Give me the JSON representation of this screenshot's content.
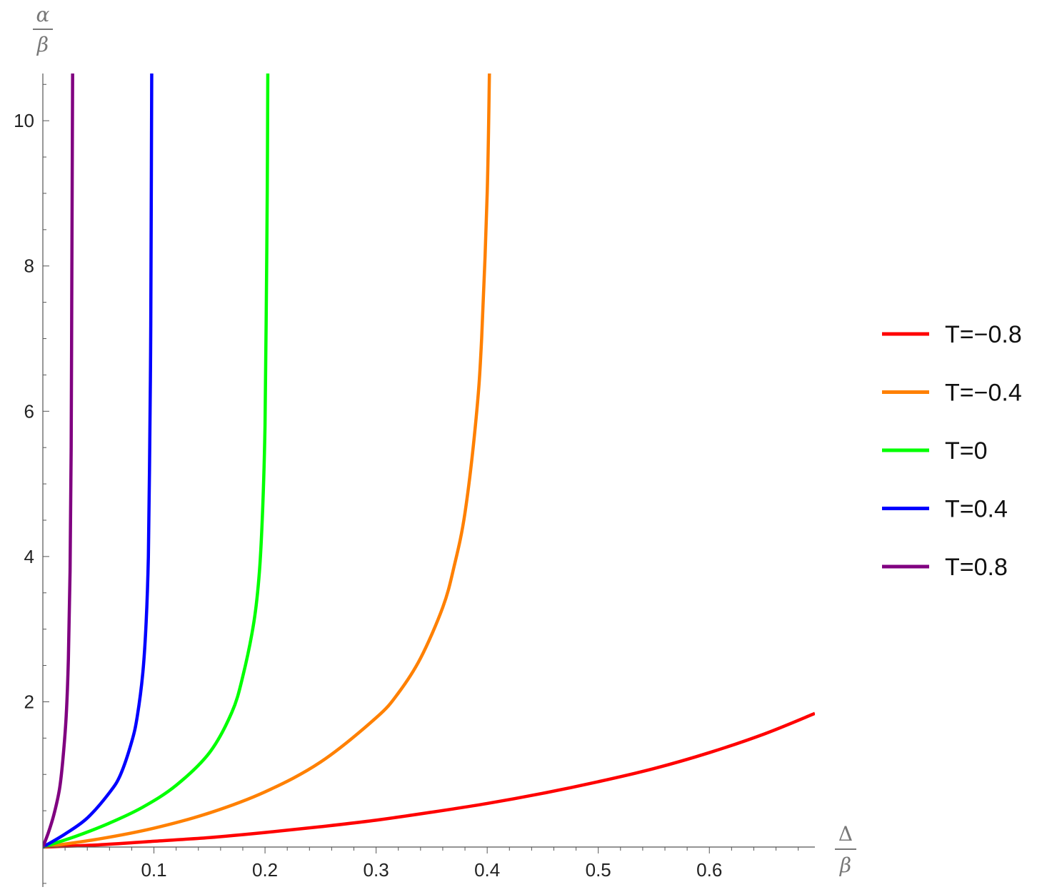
{
  "chart_data": {
    "type": "line",
    "title": "",
    "xlabel": {
      "numerator": "Δ",
      "denominator": "β"
    },
    "ylabel": {
      "numerator": "α",
      "denominator": "β"
    },
    "xlim": [
      0,
      0.695
    ],
    "ylim": [
      -0.55,
      10.65
    ],
    "x_ticks": [
      0.1,
      0.2,
      0.3,
      0.4,
      0.5,
      0.6
    ],
    "x_tick_labels": [
      "0.1",
      "0.2",
      "0.3",
      "0.4",
      "0.5",
      "0.6"
    ],
    "y_ticks": [
      2,
      4,
      6,
      8,
      10
    ],
    "y_tick_labels": [
      "2",
      "4",
      "6",
      "8",
      "10"
    ],
    "grid": false,
    "legend_position": "right",
    "series": [
      {
        "name": "T=−0.8",
        "color": "#ff0000",
        "points": [
          [
            0,
            0
          ],
          [
            0.05,
            0.03
          ],
          [
            0.1,
            0.08
          ],
          [
            0.15,
            0.13
          ],
          [
            0.2,
            0.2
          ],
          [
            0.25,
            0.28
          ],
          [
            0.3,
            0.37
          ],
          [
            0.35,
            0.48
          ],
          [
            0.4,
            0.6
          ],
          [
            0.45,
            0.74
          ],
          [
            0.5,
            0.9
          ],
          [
            0.55,
            1.08
          ],
          [
            0.6,
            1.3
          ],
          [
            0.65,
            1.56
          ],
          [
            0.695,
            1.84
          ]
        ]
      },
      {
        "name": "T=−0.4",
        "color": "#ff8000",
        "points": [
          [
            0,
            0
          ],
          [
            0.05,
            0.11
          ],
          [
            0.1,
            0.26
          ],
          [
            0.15,
            0.47
          ],
          [
            0.2,
            0.76
          ],
          [
            0.25,
            1.17
          ],
          [
            0.3,
            1.78
          ],
          [
            0.32,
            2.12
          ],
          [
            0.34,
            2.6
          ],
          [
            0.36,
            3.3
          ],
          [
            0.37,
            3.85
          ],
          [
            0.38,
            4.6
          ],
          [
            0.39,
            5.9
          ],
          [
            0.395,
            7.0
          ],
          [
            0.4,
            9.0
          ],
          [
            0.402,
            10.65
          ]
        ]
      },
      {
        "name": "T=0",
        "color": "#00ff00",
        "points": [
          [
            0,
            0
          ],
          [
            0.03,
            0.15
          ],
          [
            0.06,
            0.33
          ],
          [
            0.09,
            0.55
          ],
          [
            0.12,
            0.85
          ],
          [
            0.15,
            1.3
          ],
          [
            0.17,
            1.85
          ],
          [
            0.18,
            2.35
          ],
          [
            0.19,
            3.1
          ],
          [
            0.195,
            3.8
          ],
          [
            0.198,
            4.7
          ],
          [
            0.2,
            5.8
          ],
          [
            0.201,
            7.2
          ],
          [
            0.202,
            9.0
          ],
          [
            0.2025,
            10.65
          ]
        ]
      },
      {
        "name": "T=0.4",
        "color": "#0000ff",
        "points": [
          [
            0,
            0
          ],
          [
            0.02,
            0.18
          ],
          [
            0.04,
            0.4
          ],
          [
            0.06,
            0.75
          ],
          [
            0.07,
            1.0
          ],
          [
            0.08,
            1.45
          ],
          [
            0.085,
            1.8
          ],
          [
            0.09,
            2.4
          ],
          [
            0.093,
            3.1
          ],
          [
            0.095,
            4.0
          ],
          [
            0.096,
            5.2
          ],
          [
            0.097,
            6.8
          ],
          [
            0.0975,
            8.5
          ],
          [
            0.098,
            10.65
          ]
        ]
      },
      {
        "name": "T=0.8",
        "color": "#800080",
        "points": [
          [
            0,
            0
          ],
          [
            0.005,
            0.2
          ],
          [
            0.01,
            0.45
          ],
          [
            0.015,
            0.8
          ],
          [
            0.018,
            1.2
          ],
          [
            0.021,
            1.8
          ],
          [
            0.023,
            2.6
          ],
          [
            0.0245,
            3.8
          ],
          [
            0.0255,
            5.5
          ],
          [
            0.026,
            7.5
          ],
          [
            0.0265,
            9.5
          ],
          [
            0.0268,
            10.65
          ]
        ]
      }
    ]
  }
}
